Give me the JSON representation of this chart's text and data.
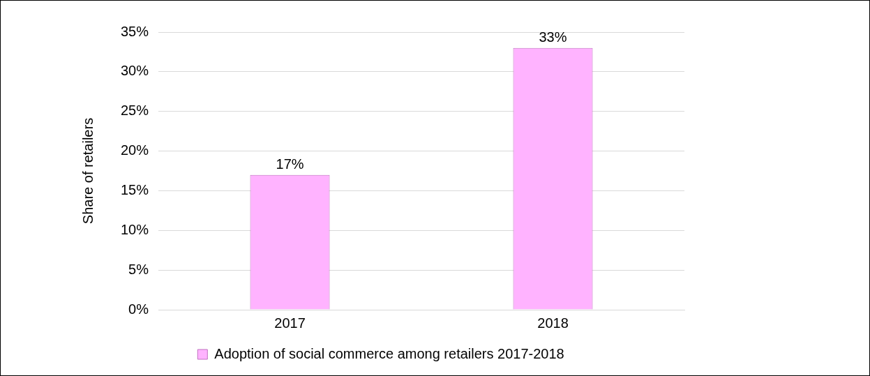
{
  "chart_data": {
    "type": "bar",
    "ylabel": "Share of retailers",
    "categories": [
      "2017",
      "2018"
    ],
    "series": [
      {
        "name": "Adoption of social commerce among retailers 2017-2018",
        "color": "#ffb3ff",
        "values": [
          17,
          33
        ]
      }
    ],
    "value_labels": [
      "17%",
      "33%"
    ],
    "ylim": [
      0,
      35
    ],
    "yticks": [
      {
        "value": 0,
        "label": "0%"
      },
      {
        "value": 5,
        "label": "5%"
      },
      {
        "value": 10,
        "label": "10%"
      },
      {
        "value": 15,
        "label": "15%"
      },
      {
        "value": 20,
        "label": "20%"
      },
      {
        "value": 25,
        "label": "25%"
      },
      {
        "value": 30,
        "label": "30%"
      },
      {
        "value": 35,
        "label": "35%"
      }
    ],
    "grid": "y",
    "legend": "bottom"
  }
}
